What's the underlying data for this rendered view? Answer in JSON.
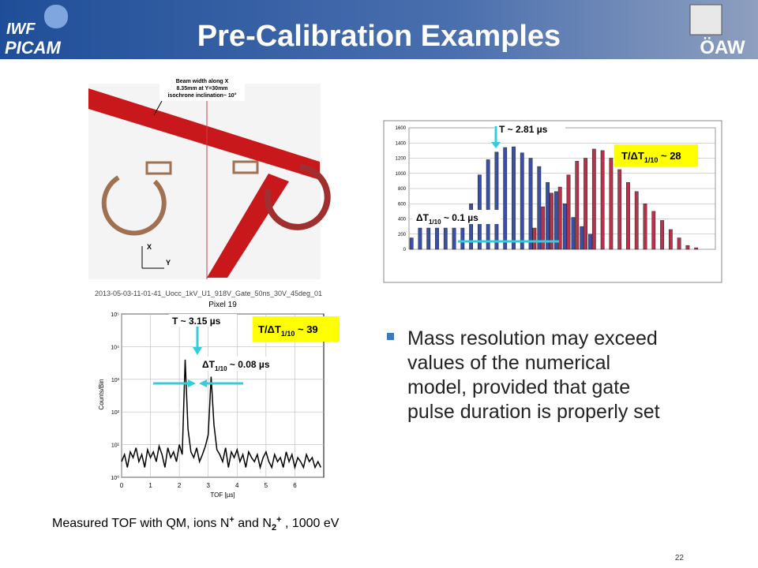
{
  "header": {
    "title": "Pre-Calibration Examples",
    "logo_left_top": "IWF",
    "logo_left_bottom": "PICAM",
    "logo_right": "ÖAW"
  },
  "simulation": {
    "note": [
      "Beam width along X",
      "8.35mm at Y=30mm",
      "isochrone inclination~ 10°"
    ],
    "axis_x": "X",
    "axis_y": "Y"
  },
  "histogram": {
    "ylim": [
      0,
      1600
    ],
    "yticks": [
      0,
      200,
      400,
      600,
      800,
      1000,
      1200,
      1400,
      1600
    ],
    "series": [
      {
        "color": "#3a4fa8",
        "values": [
          150,
          280,
          280,
          280,
          280,
          280,
          280,
          600,
          980,
          1180,
          1280,
          1340,
          1350,
          1270,
          1200,
          1090,
          880,
          760,
          600,
          420,
          300,
          200,
          null,
          null,
          null,
          null,
          null,
          null,
          null,
          null,
          null,
          null,
          null,
          null,
          null,
          null
        ]
      },
      {
        "color": "#b8334a",
        "values": [
          null,
          null,
          null,
          null,
          null,
          null,
          null,
          null,
          null,
          null,
          null,
          null,
          null,
          null,
          280,
          560,
          740,
          820,
          980,
          1160,
          1200,
          1320,
          1300,
          1200,
          1050,
          880,
          760,
          600,
          500,
          380,
          260,
          150,
          50,
          20,
          null,
          null
        ]
      }
    ],
    "label_t": "T ~ 2.81 µs",
    "label_ratio": {
      "main": "T/ΔT",
      "sub": "1/10",
      "rest": " ~ 28"
    },
    "label_dt": {
      "main": "ΔT",
      "sub": "1/10",
      "rest": " ~ 0.1 µs"
    }
  },
  "tof": {
    "filename": "2013-05-03-11-01-41_Uocc_1kV_U1_918V_Gate_50ns_30V_45deg_01",
    "subtitle": "Pixel 19",
    "xlabel": "TOF [µs]",
    "ylabel": "Counts/Bin",
    "log_y": true,
    "grid": true,
    "color": "#000000",
    "xlim": [
      0,
      7
    ],
    "xticks": [
      0,
      1,
      2,
      3,
      4,
      5,
      6
    ],
    "ylim": [
      1,
      100000
    ],
    "yticks": [
      {
        "value": 1,
        "label": "10⁰"
      },
      {
        "value": 10,
        "label": "10¹"
      },
      {
        "value": 100,
        "label": "10²"
      },
      {
        "value": 1000,
        "label": "10³"
      },
      {
        "value": 10000,
        "label": "10⁴"
      },
      {
        "value": 100000,
        "label": "10⁵"
      }
    ],
    "x": [
      0,
      0.1,
      0.2,
      0.3,
      0.4,
      0.5,
      0.6,
      0.7,
      0.8,
      0.9,
      1,
      1.1,
      1.2,
      1.3,
      1.4,
      1.5,
      1.6,
      1.7,
      1.8,
      1.9,
      2,
      2.1,
      2.2,
      2.3,
      2.4,
      2.5,
      2.6,
      2.7,
      2.8,
      2.9,
      3,
      3.1,
      3.2,
      3.3,
      3.4,
      3.5,
      3.6,
      3.7,
      3.8,
      3.9,
      4,
      4.1,
      4.2,
      4.3,
      4.4,
      4.5,
      4.6,
      4.7,
      4.8,
      4.9,
      5,
      5.1,
      5.2,
      5.3,
      5.4,
      5.5,
      5.6,
      5.7,
      5.8,
      5.9,
      6,
      6.1,
      6.2,
      6.3,
      6.4,
      6.5,
      6.6,
      6.7,
      6.8,
      6.9
    ],
    "values": [
      3,
      5,
      2,
      6,
      4,
      8,
      3,
      5,
      2,
      7,
      4,
      6,
      3,
      9,
      5,
      2,
      8,
      4,
      6,
      3,
      10,
      5,
      4000,
      30,
      6,
      4,
      8,
      3,
      5,
      9,
      20,
      1200,
      40,
      7,
      5,
      3,
      8,
      2,
      6,
      4,
      7,
      3,
      5,
      2,
      6,
      4,
      3,
      5,
      2,
      4,
      6,
      3,
      2,
      5,
      3,
      4,
      2,
      6,
      3,
      5,
      2,
      4,
      3,
      2,
      5,
      3,
      4,
      2,
      3,
      2
    ],
    "label_t": "T ~ 3.15 µs",
    "label_ratio": {
      "main": "T/ΔT",
      "sub": "1/10",
      "rest": " ~ 39"
    },
    "label_dt": {
      "main": "ΔT",
      "sub": "1/10",
      "rest": " ~ 0.08 µs"
    }
  },
  "bullet": [
    "Mass resolution may exceed",
    "values of the numerical",
    "model, provided that gate",
    "pulse duration is properly set"
  ],
  "caption": [
    {
      "text": "Measured TOF with QM, ions N"
    },
    {
      "text": "+",
      "style": "sup"
    },
    {
      "text": " and N"
    },
    {
      "text": "2",
      "style": "sub"
    },
    {
      "text": "+",
      "style": "sup"
    },
    {
      "text": " , 1000 eV"
    }
  ],
  "page_number": "22"
}
